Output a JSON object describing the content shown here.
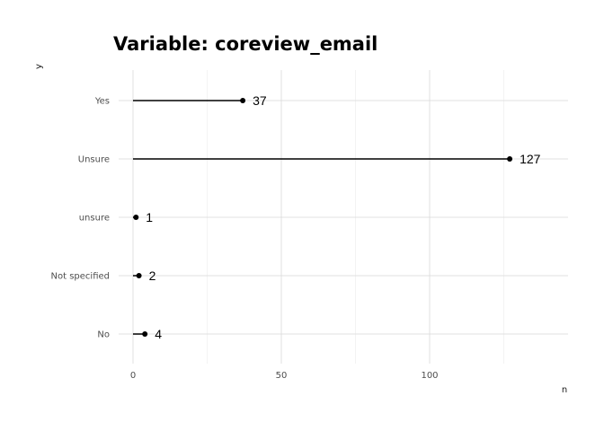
{
  "chart_data": {
    "type": "lollipop",
    "title": "Variable: coreview_email",
    "xlabel": "n",
    "ylabel": "y",
    "categories": [
      "Yes",
      "Unsure",
      "unsure",
      "Not specified",
      "No"
    ],
    "values": [
      37,
      127,
      1,
      2,
      4
    ],
    "xlim": [
      -3,
      147
    ],
    "xticks": [
      0,
      50,
      100
    ],
    "grid": true,
    "legend": "none",
    "colors": {
      "marks": "#000000",
      "grid": "#d9d9d9"
    }
  }
}
